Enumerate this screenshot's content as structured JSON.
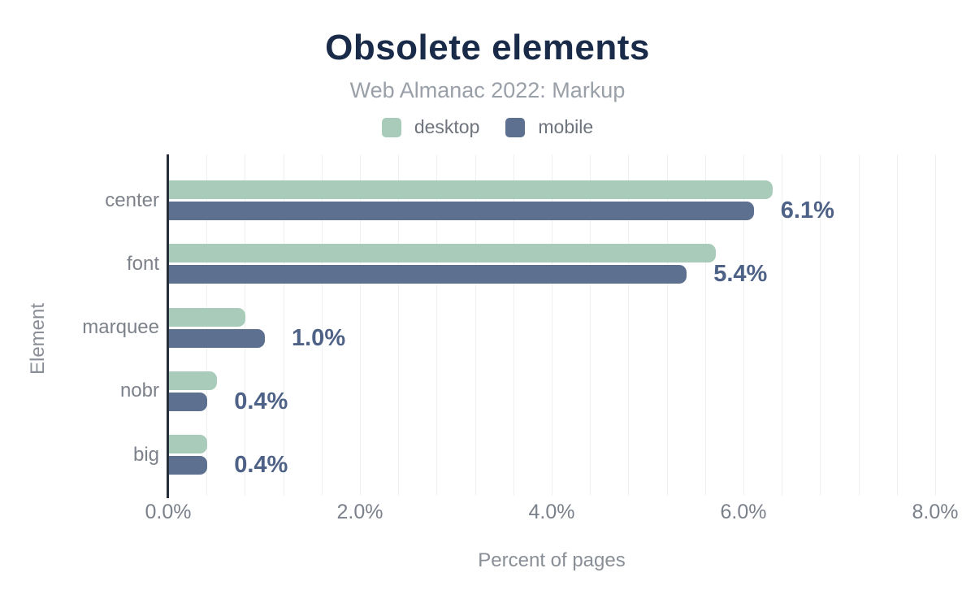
{
  "title": "Obsolete elements",
  "subtitle": "Web Almanac 2022: Markup",
  "colors": {
    "title": "#1a2b49",
    "subtitle": "#9aa0a8",
    "desktop": "#a9ccba",
    "mobile": "#5d7090",
    "value_label": "#4e6186",
    "axis_line": "#272d38",
    "gridline": "#edf1ef",
    "tick_text": "#7b818b"
  },
  "chart_data": {
    "type": "bar",
    "orientation": "horizontal",
    "title": "Obsolete elements",
    "subtitle": "Web Almanac 2022: Markup",
    "categories": [
      "center",
      "font",
      "marquee",
      "nobr",
      "big"
    ],
    "series": [
      {
        "name": "desktop",
        "color": "#a9ccba",
        "values": [
          6.3,
          5.7,
          0.8,
          0.5,
          0.4
        ]
      },
      {
        "name": "mobile",
        "color": "#5d7090",
        "values": [
          6.1,
          5.4,
          1.0,
          0.4,
          0.4
        ]
      }
    ],
    "value_labels": [
      "6.1%",
      "5.4%",
      "1.0%",
      "0.4%",
      "0.4%"
    ],
    "value_labels_series": "mobile",
    "xlabel": "Percent of pages",
    "ylabel": "Element",
    "xlim": [
      0,
      8
    ],
    "xticks": {
      "values": [
        0,
        2,
        4,
        6,
        8
      ],
      "labels": [
        "0.0%",
        "2.0%",
        "4.0%",
        "6.0%",
        "8.0%"
      ]
    },
    "grid_step": 0.4,
    "grid": true,
    "legend_position": "top"
  }
}
